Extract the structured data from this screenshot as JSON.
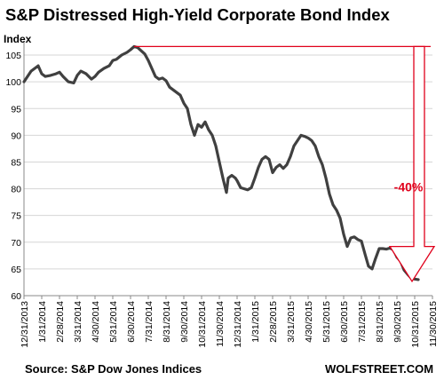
{
  "chart_data": {
    "type": "line",
    "title": "S&P Distressed High-Yield Corporate Bond Index",
    "ylabel": "Index",
    "ylim": [
      60,
      107
    ],
    "yticks": [
      60,
      65,
      70,
      75,
      80,
      85,
      90,
      95,
      100,
      105
    ],
    "categories": [
      "12/31/2013",
      "1/31/2014",
      "2/28/2014",
      "3/31/2014",
      "4/30/2014",
      "5/31/2014",
      "6/30/2014",
      "7/31/2014",
      "8/31/2014",
      "9/30/2014",
      "10/31/2014",
      "11/30/2014",
      "12/31/2014",
      "1/31/2015",
      "2/28/2015",
      "3/31/2015",
      "4/30/2015",
      "5/31/2015",
      "6/30/2015",
      "7/31/2015",
      "8/31/2015",
      "9/30/2015",
      "10/31/2015",
      "11/30/2015"
    ],
    "line_color": "#404040",
    "series": [
      {
        "name": "",
        "points": [
          [
            0,
            100
          ],
          [
            0.2,
            101
          ],
          [
            0.4,
            102
          ],
          [
            0.6,
            102.5
          ],
          [
            0.8,
            103
          ],
          [
            1.0,
            101.5
          ],
          [
            1.2,
            101
          ],
          [
            1.5,
            101.2
          ],
          [
            1.8,
            101.5
          ],
          [
            2.0,
            101.8
          ],
          [
            2.2,
            101
          ],
          [
            2.5,
            100
          ],
          [
            2.8,
            99.8
          ],
          [
            3.0,
            101.2
          ],
          [
            3.2,
            102
          ],
          [
            3.5,
            101.5
          ],
          [
            3.8,
            100.5
          ],
          [
            4.0,
            101
          ],
          [
            4.2,
            101.8
          ],
          [
            4.5,
            102.5
          ],
          [
            4.8,
            103
          ],
          [
            5.0,
            104
          ],
          [
            5.2,
            104.2
          ],
          [
            5.5,
            105
          ],
          [
            5.8,
            105.5
          ],
          [
            6.0,
            106
          ],
          [
            6.2,
            106.6
          ],
          [
            6.4,
            106.4
          ],
          [
            6.6,
            105.8
          ],
          [
            6.8,
            105.2
          ],
          [
            7.0,
            104
          ],
          [
            7.2,
            102.5
          ],
          [
            7.4,
            101
          ],
          [
            7.6,
            100.5
          ],
          [
            7.8,
            100.7
          ],
          [
            8.0,
            100.2
          ],
          [
            8.2,
            99
          ],
          [
            8.4,
            98.5
          ],
          [
            8.6,
            98
          ],
          [
            8.8,
            97.5
          ],
          [
            9.0,
            96
          ],
          [
            9.2,
            95
          ],
          [
            9.4,
            92
          ],
          [
            9.6,
            90
          ],
          [
            9.8,
            92
          ],
          [
            10.0,
            91.5
          ],
          [
            10.2,
            92.5
          ],
          [
            10.4,
            91
          ],
          [
            10.6,
            90
          ],
          [
            10.8,
            88
          ],
          [
            11.0,
            85
          ],
          [
            11.2,
            82
          ],
          [
            11.4,
            79.3
          ],
          [
            11.5,
            82
          ],
          [
            11.7,
            82.5
          ],
          [
            11.9,
            82
          ],
          [
            12.0,
            81.5
          ],
          [
            12.2,
            80.2
          ],
          [
            12.4,
            80
          ],
          [
            12.6,
            79.8
          ],
          [
            12.8,
            80.2
          ],
          [
            13.0,
            82
          ],
          [
            13.2,
            84
          ],
          [
            13.4,
            85.5
          ],
          [
            13.6,
            86
          ],
          [
            13.8,
            85.5
          ],
          [
            14.0,
            83
          ],
          [
            14.2,
            84
          ],
          [
            14.4,
            84.5
          ],
          [
            14.6,
            83.8
          ],
          [
            14.8,
            84.5
          ],
          [
            15.0,
            86
          ],
          [
            15.2,
            88
          ],
          [
            15.4,
            89
          ],
          [
            15.6,
            90
          ],
          [
            15.8,
            89.8
          ],
          [
            16.0,
            89.5
          ],
          [
            16.2,
            89
          ],
          [
            16.4,
            88
          ],
          [
            16.6,
            86
          ],
          [
            16.8,
            84.5
          ],
          [
            17.0,
            82
          ],
          [
            17.2,
            79
          ],
          [
            17.4,
            77
          ],
          [
            17.6,
            76
          ],
          [
            17.8,
            74.5
          ],
          [
            18.0,
            71.5
          ],
          [
            18.2,
            69.2
          ],
          [
            18.4,
            70.8
          ],
          [
            18.6,
            71
          ],
          [
            18.8,
            70.5
          ],
          [
            19.0,
            70.2
          ],
          [
            19.2,
            67.8
          ],
          [
            19.4,
            65.5
          ],
          [
            19.6,
            65
          ],
          [
            19.8,
            67
          ],
          [
            20.0,
            68.8
          ],
          [
            20.2,
            68.8
          ],
          [
            20.4,
            68.7
          ],
          [
            20.6,
            68.9
          ],
          [
            20.8,
            68.6
          ],
          [
            21.0,
            67.2
          ],
          [
            21.2,
            66.5
          ],
          [
            21.4,
            64.8
          ],
          [
            21.6,
            64
          ],
          [
            21.8,
            63.3
          ],
          [
            22.0,
            63.1
          ],
          [
            22.2,
            63
          ]
        ]
      }
    ],
    "annotations": [
      {
        "text": "-40%",
        "color": "#e0001b"
      }
    ],
    "grid": true
  },
  "footer": {
    "source": "Source: S&P Dow Jones Indices",
    "brand": "WOLFSTREET.COM"
  }
}
